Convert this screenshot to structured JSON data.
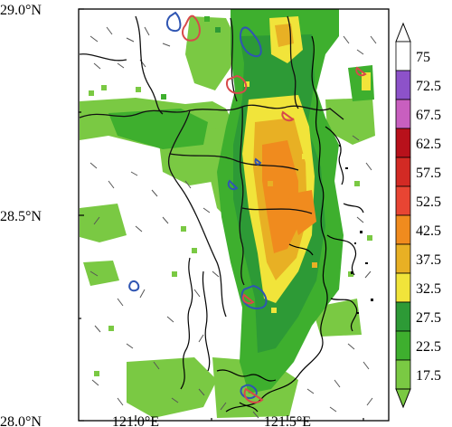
{
  "map": {
    "lat_labels": [
      "29.0°N",
      "28.5°N",
      "28.0°N"
    ],
    "lon_labels": [
      "121.0°E",
      "121.5°E"
    ],
    "lon_range": [
      120.8,
      121.8
    ],
    "lat_range": [
      28.0,
      29.0
    ],
    "lon_ticks": [
      121.0,
      121.5
    ],
    "lat_ticks": [
      29.0,
      28.5,
      28.0
    ]
  },
  "colorbar": {
    "labels": [
      "75",
      "72.5",
      "67.5",
      "62.5",
      "57.5",
      "52.5",
      "42.5",
      "37.5",
      "32.5",
      "27.5",
      "22.5",
      "17.5"
    ],
    "colors": [
      "#ffffff",
      "#8d52c9",
      "#c85fbf",
      "#b8111b",
      "#d32a24",
      "#e84533",
      "#f08b1e",
      "#e8b024",
      "#f1e43a",
      "#2d9a36",
      "#3eaf2e",
      "#7ac943"
    ],
    "extends": "both"
  },
  "colors": {
    "radar_light": "#7ac943",
    "radar_mid": "#3eaf2e",
    "radar_dark": "#2d9a36",
    "radar_yellow": "#f1e43a",
    "radar_gold": "#e8b024",
    "radar_orange": "#f08b1e",
    "contour_blue": "#2f55b2",
    "contour_red": "#d74a4a",
    "coast": "#000000"
  }
}
